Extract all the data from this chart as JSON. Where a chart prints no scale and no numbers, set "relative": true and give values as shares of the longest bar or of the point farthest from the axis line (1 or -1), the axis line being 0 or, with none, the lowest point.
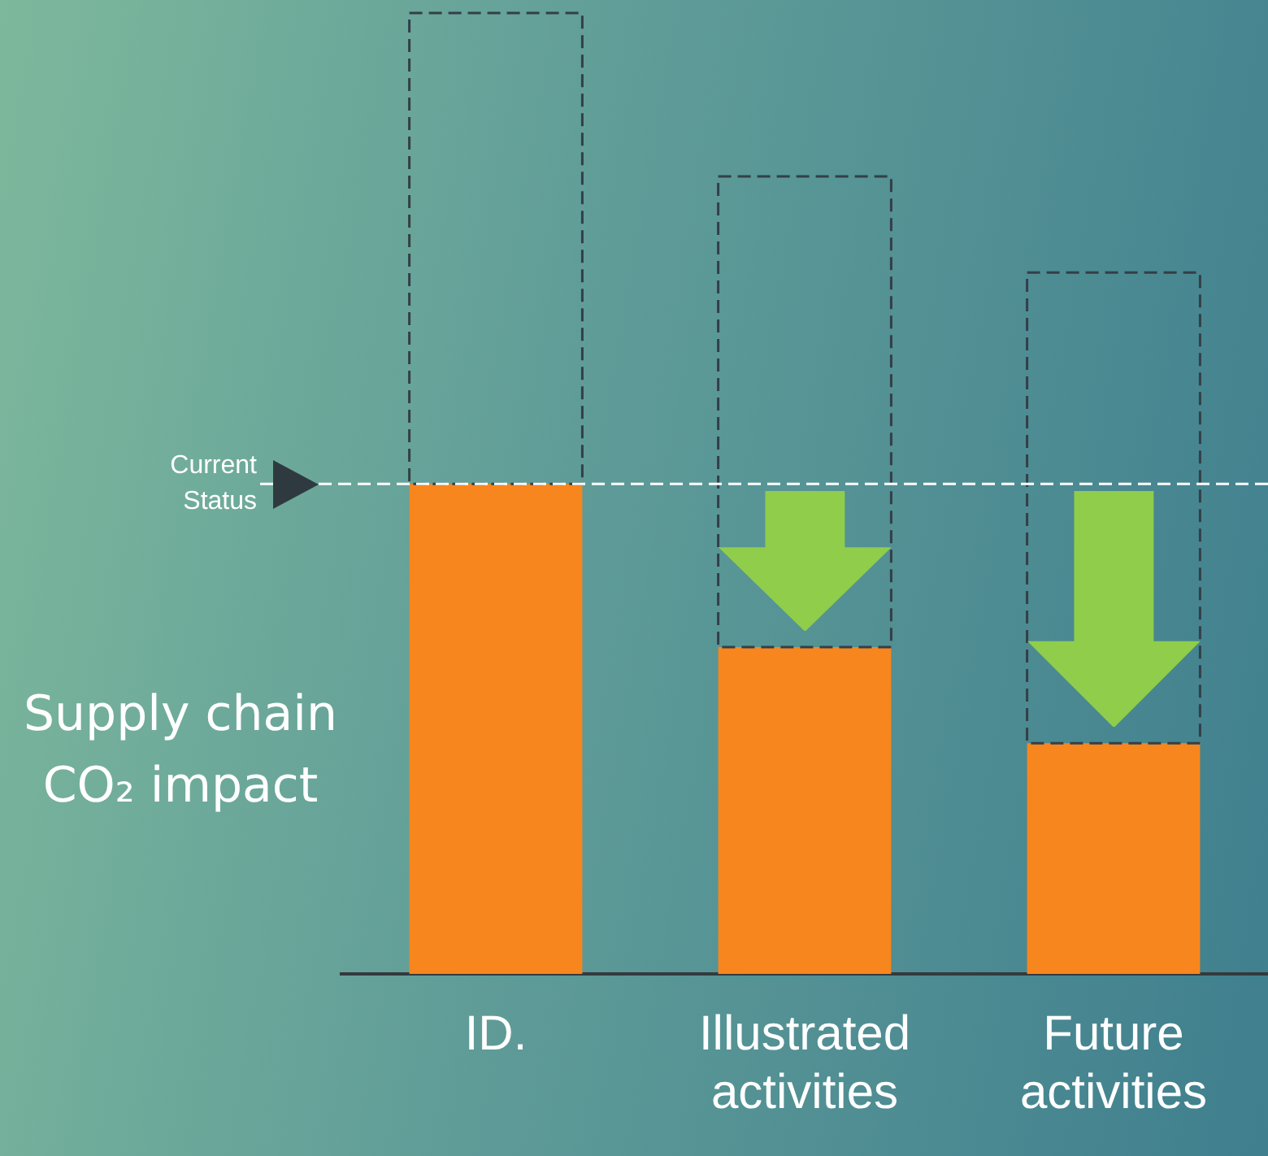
{
  "chart_data": {
    "type": "bar",
    "relative": true,
    "stacked": true,
    "grid": false,
    "ylabel": "Supply chain CO₂ impact",
    "categories": [
      "ID.",
      "Illustrated activities",
      "Future activities"
    ],
    "series": [
      {
        "color": "#f7861e",
        "values": [
          0.51,
          0.34,
          0.24
        ]
      },
      {
        "color": "#333f48",
        "line_style": "dashed",
        "values": [
          0.49,
          0.49,
          0.49
        ]
      }
    ],
    "ref_lines": [
      {
        "axis": "y",
        "value": 0.51,
        "label": "Current Status",
        "color": "#ffffff",
        "line_style": "dashed"
      }
    ]
  }
}
